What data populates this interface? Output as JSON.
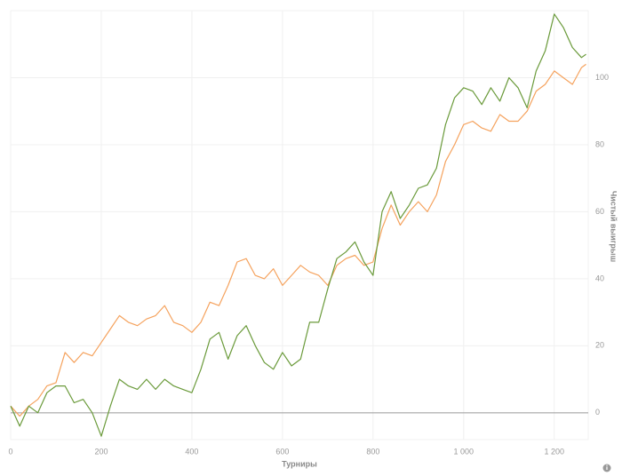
{
  "chart_data": {
    "type": "line",
    "x_label": "Турниры",
    "y_label": "Чистый выигрыш",
    "x": [
      0,
      20,
      40,
      60,
      80,
      100,
      120,
      140,
      160,
      180,
      200,
      220,
      240,
      260,
      280,
      300,
      320,
      340,
      360,
      380,
      400,
      420,
      440,
      460,
      480,
      500,
      520,
      540,
      560,
      580,
      600,
      620,
      640,
      660,
      680,
      700,
      720,
      740,
      760,
      780,
      800,
      820,
      840,
      860,
      880,
      900,
      920,
      940,
      960,
      980,
      1000,
      1020,
      1040,
      1060,
      1080,
      1100,
      1120,
      1140,
      1160,
      1180,
      1200,
      1220,
      1240,
      1260,
      1270
    ],
    "series": [
      {
        "color": "#f5a25d",
        "values": [
          2,
          -1,
          2,
          4,
          8,
          9,
          18,
          15,
          18,
          17,
          21,
          25,
          29,
          27,
          26,
          28,
          29,
          32,
          27,
          26,
          24,
          27,
          33,
          32,
          38,
          45,
          46,
          41,
          40,
          43,
          38,
          41,
          44,
          42,
          41,
          38,
          44,
          46,
          47,
          44,
          45,
          55,
          62,
          56,
          60,
          63,
          60,
          65,
          75,
          80,
          86,
          87,
          85,
          84,
          89,
          87,
          87,
          90,
          96,
          98,
          102,
          100,
          98,
          103,
          104
        ]
      },
      {
        "color": "#6a9a3a",
        "values": [
          2,
          -4,
          2,
          0,
          6,
          8,
          8,
          3,
          4,
          0,
          -7,
          2,
          10,
          8,
          7,
          10,
          7,
          10,
          8,
          7,
          6,
          13,
          22,
          24,
          16,
          23,
          26,
          20,
          15,
          13,
          18,
          14,
          16,
          27,
          27,
          37,
          46,
          48,
          51,
          45,
          41,
          60,
          66,
          58,
          62,
          67,
          68,
          73,
          86,
          94,
          97,
          96,
          92,
          97,
          93,
          100,
          97,
          91,
          102,
          108,
          119,
          115,
          109,
          106,
          107
        ]
      }
    ],
    "xlim": [
      0,
      1275
    ],
    "ylim": [
      -8,
      120
    ],
    "xticks": [
      0,
      200,
      400,
      600,
      800,
      {
        "value": 1000,
        "label": "1 000"
      },
      {
        "value": 1200,
        "label": "1 200"
      }
    ],
    "yticks": [
      0,
      20,
      40,
      60,
      80,
      100
    ],
    "grid": true
  }
}
